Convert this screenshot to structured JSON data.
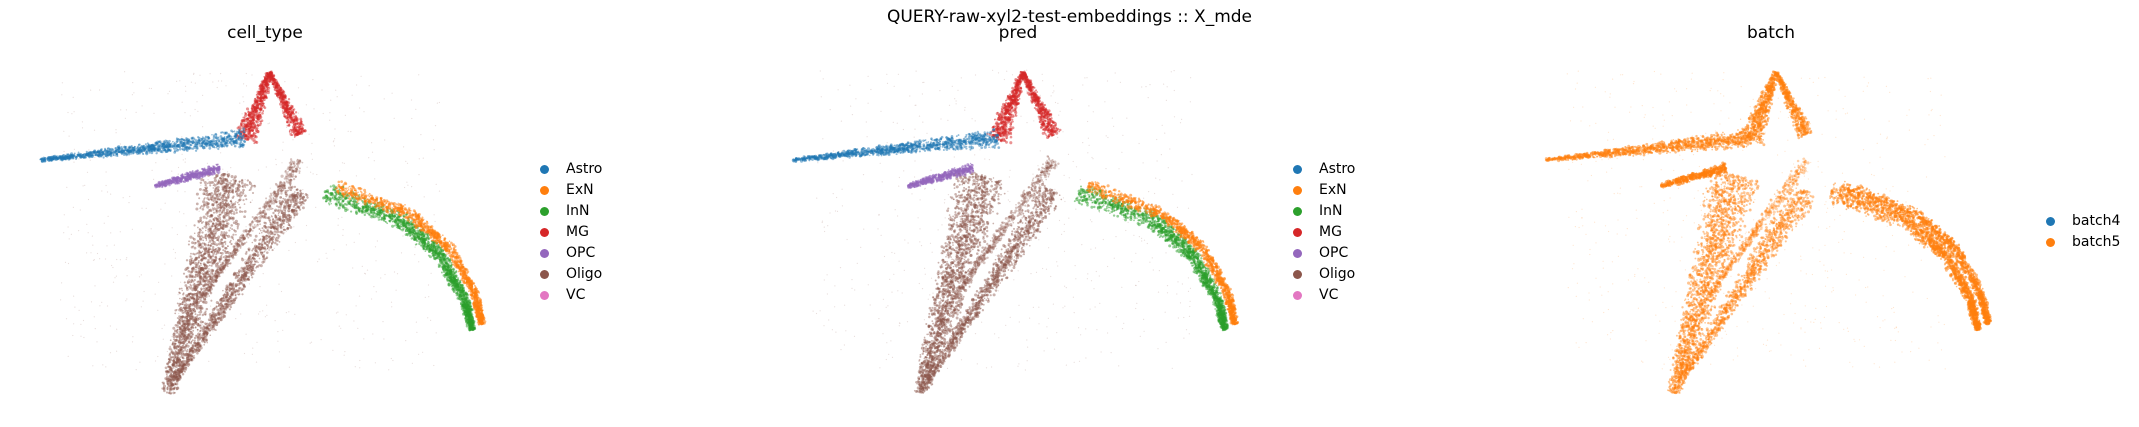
{
  "figure": {
    "suptitle": "QUERY-raw-xyl2-test-embeddings :: X_mde"
  },
  "chart_data": [
    {
      "type": "scatter",
      "title": "cell_type",
      "xlabel": "",
      "ylabel": "",
      "grid": false,
      "axes_visible": false,
      "legend_position": "right",
      "series": [
        {
          "name": "Astro",
          "color": "#1f77b4"
        },
        {
          "name": "ExN",
          "color": "#ff7f0e"
        },
        {
          "name": "InN",
          "color": "#2ca02c"
        },
        {
          "name": "MG",
          "color": "#d62728"
        },
        {
          "name": "OPC",
          "color": "#9467bd"
        },
        {
          "name": "Oligo",
          "color": "#8c564b"
        },
        {
          "name": "VC",
          "color": "#e377c2"
        }
      ]
    },
    {
      "type": "scatter",
      "title": "pred",
      "xlabel": "",
      "ylabel": "",
      "grid": false,
      "axes_visible": false,
      "legend_position": "right",
      "series": [
        {
          "name": "Astro",
          "color": "#1f77b4"
        },
        {
          "name": "ExN",
          "color": "#ff7f0e"
        },
        {
          "name": "InN",
          "color": "#2ca02c"
        },
        {
          "name": "MG",
          "color": "#d62728"
        },
        {
          "name": "OPC",
          "color": "#9467bd"
        },
        {
          "name": "Oligo",
          "color": "#8c564b"
        },
        {
          "name": "VC",
          "color": "#e377c2"
        }
      ]
    },
    {
      "type": "scatter",
      "title": "batch",
      "xlabel": "",
      "ylabel": "",
      "grid": false,
      "axes_visible": false,
      "legend_position": "right",
      "series": [
        {
          "name": "batch4",
          "color": "#1f77b4"
        },
        {
          "name": "batch5",
          "color": "#ff7f0e"
        }
      ]
    }
  ]
}
